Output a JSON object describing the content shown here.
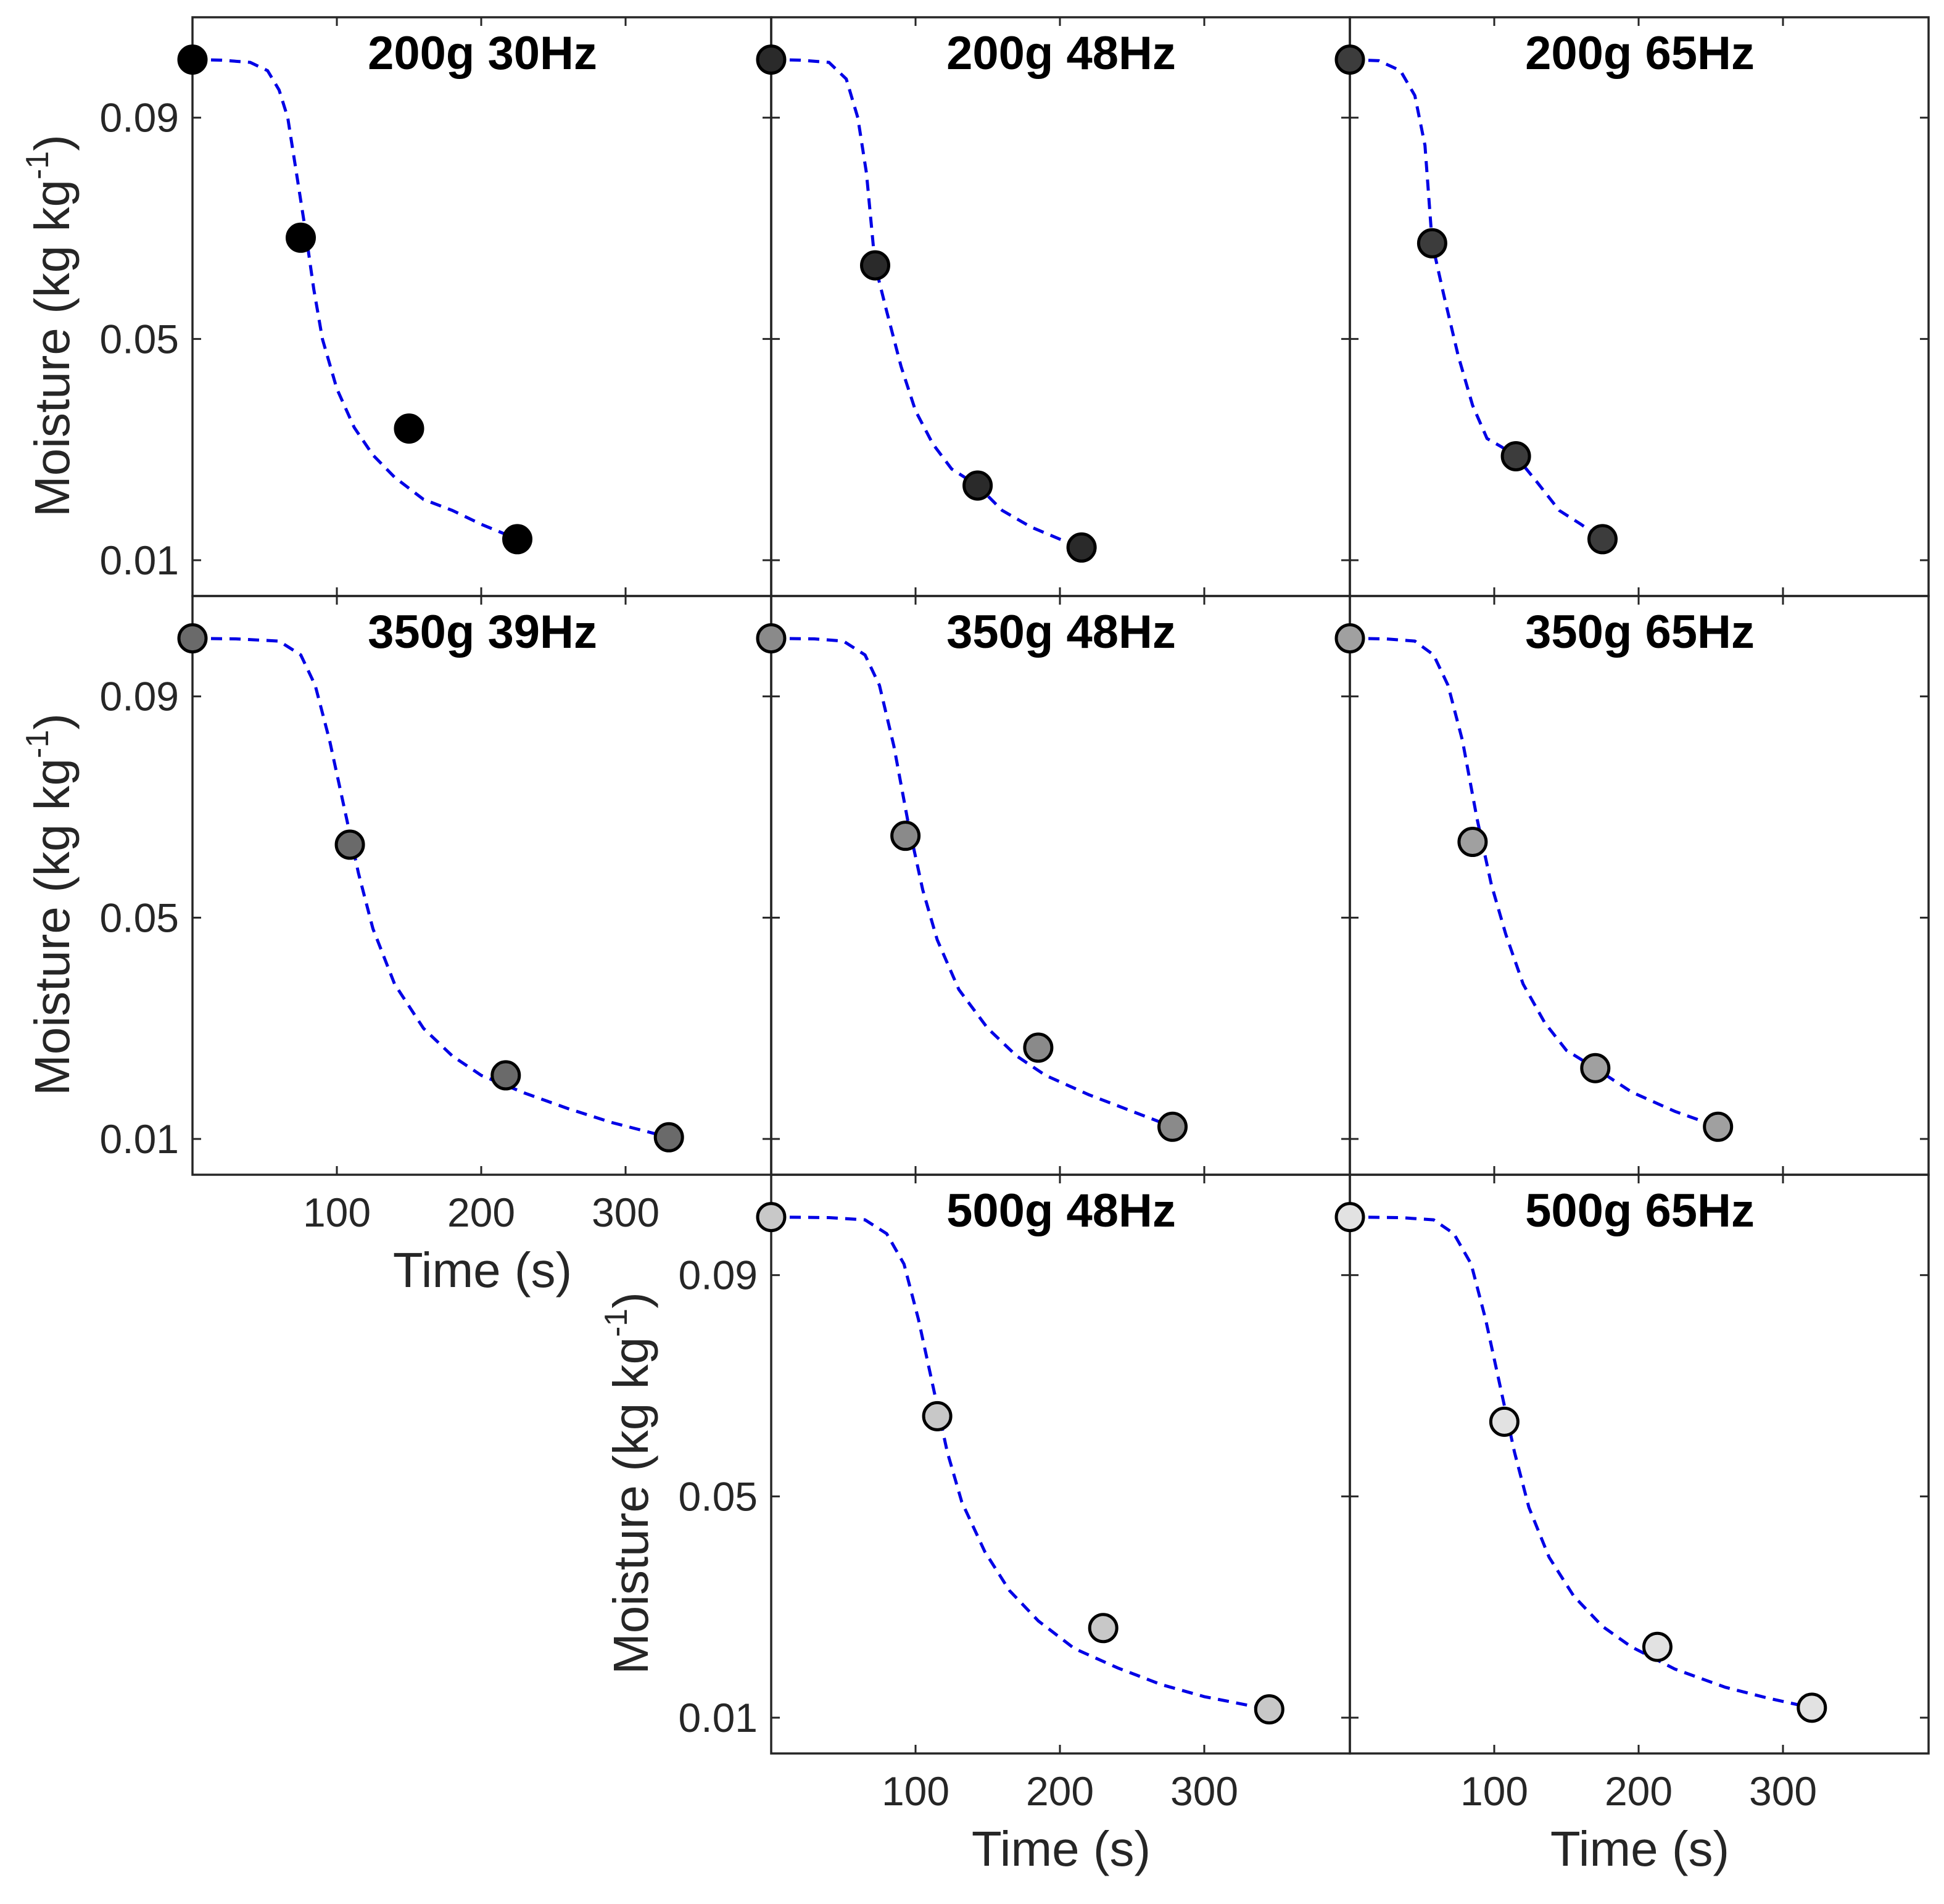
{
  "chart_data": {
    "type": "scatter",
    "layout": "3x3 grid of small multiples, shared axes, bottom-left cell empty",
    "grid": false,
    "xlim": [
      0,
      400
    ],
    "ylim": [
      0,
      0.11
    ],
    "xticks": [
      100,
      200,
      300
    ],
    "yticks": [
      0.01,
      0.05,
      0.09
    ],
    "xlabel": "Time (s)",
    "ylabel": {
      "base": "Moisture (kg kg",
      "sup": "-1",
      "close": ")"
    },
    "fit_line_style": {
      "color": "#0000e6",
      "dash": "dashed",
      "shape": "sigmoidal drying curve"
    },
    "panels": [
      {
        "title": "200g 30Hz",
        "row": 0,
        "col": 0,
        "marker_fill": "#000000",
        "show_ylabel": true,
        "show_xlabel": false,
        "points": [
          [
            0,
            0.1005
          ],
          [
            75,
            0.0683
          ],
          [
            150,
            0.0338
          ],
          [
            225,
            0.0138
          ]
        ],
        "fit": [
          [
            0,
            0.1005
          ],
          [
            20,
            0.1004
          ],
          [
            40,
            0.1
          ],
          [
            52,
            0.0985
          ],
          [
            60,
            0.095
          ],
          [
            66,
            0.09
          ],
          [
            72,
            0.08
          ],
          [
            78,
            0.07
          ],
          [
            84,
            0.059
          ],
          [
            90,
            0.05
          ],
          [
            100,
            0.041
          ],
          [
            112,
            0.034
          ],
          [
            125,
            0.029
          ],
          [
            140,
            0.025
          ],
          [
            160,
            0.021
          ],
          [
            180,
            0.019
          ],
          [
            200,
            0.0165
          ],
          [
            225,
            0.0138
          ]
        ]
      },
      {
        "title": "200g 48Hz",
        "row": 0,
        "col": 1,
        "marker_fill": "#2a2a2a",
        "show_ylabel": false,
        "show_xlabel": false,
        "points": [
          [
            0,
            0.1005
          ],
          [
            72,
            0.0633
          ],
          [
            143,
            0.0235
          ],
          [
            215,
            0.0123
          ]
        ],
        "fit": [
          [
            0,
            0.1005
          ],
          [
            20,
            0.1004
          ],
          [
            40,
            0.1
          ],
          [
            52,
            0.097
          ],
          [
            60,
            0.09
          ],
          [
            66,
            0.08
          ],
          [
            72,
            0.0633
          ],
          [
            80,
            0.055
          ],
          [
            90,
            0.045
          ],
          [
            100,
            0.037
          ],
          [
            112,
            0.031
          ],
          [
            125,
            0.0265
          ],
          [
            143,
            0.0235
          ],
          [
            160,
            0.019
          ],
          [
            180,
            0.016
          ],
          [
            200,
            0.0138
          ],
          [
            215,
            0.0123
          ]
        ]
      },
      {
        "title": "200g 65Hz",
        "row": 0,
        "col": 2,
        "marker_fill": "#3c3c3c",
        "show_ylabel": false,
        "show_xlabel": false,
        "points": [
          [
            0,
            0.1005
          ],
          [
            57,
            0.0673
          ],
          [
            115,
            0.0288
          ],
          [
            175,
            0.0138
          ]
        ],
        "fit": [
          [
            0,
            0.1005
          ],
          [
            20,
            0.1003
          ],
          [
            35,
            0.0985
          ],
          [
            45,
            0.094
          ],
          [
            52,
            0.085
          ],
          [
            57,
            0.0673
          ],
          [
            65,
            0.058
          ],
          [
            75,
            0.047
          ],
          [
            85,
            0.038
          ],
          [
            95,
            0.032
          ],
          [
            105,
            0.0305
          ],
          [
            115,
            0.0288
          ],
          [
            130,
            0.024
          ],
          [
            145,
            0.019
          ],
          [
            160,
            0.0165
          ],
          [
            175,
            0.0138
          ]
        ]
      },
      {
        "title": "350g 39Hz",
        "row": 1,
        "col": 0,
        "marker_fill": "#6a6a6a",
        "show_ylabel": true,
        "show_xlabel": true,
        "points": [
          [
            0,
            0.1005
          ],
          [
            109,
            0.0632
          ],
          [
            217,
            0.0215
          ],
          [
            330,
            0.0103
          ]
        ],
        "fit": [
          [
            0,
            0.1005
          ],
          [
            30,
            0.1004
          ],
          [
            60,
            0.1
          ],
          [
            75,
            0.0975
          ],
          [
            85,
            0.092
          ],
          [
            95,
            0.082
          ],
          [
            105,
            0.07
          ],
          [
            115,
            0.058
          ],
          [
            125,
            0.048
          ],
          [
            140,
            0.038
          ],
          [
            160,
            0.03
          ],
          [
            180,
            0.025
          ],
          [
            200,
            0.0215
          ],
          [
            230,
            0.0183
          ],
          [
            260,
            0.0155
          ],
          [
            290,
            0.013
          ],
          [
            330,
            0.0103
          ]
        ]
      },
      {
        "title": "350g 48Hz",
        "row": 1,
        "col": 1,
        "marker_fill": "#8a8a8a",
        "show_ylabel": false,
        "show_xlabel": false,
        "points": [
          [
            0,
            0.1005
          ],
          [
            93,
            0.0648
          ],
          [
            185,
            0.0265
          ],
          [
            278,
            0.0122
          ]
        ],
        "fit": [
          [
            0,
            0.1005
          ],
          [
            30,
            0.1004
          ],
          [
            50,
            0.1
          ],
          [
            65,
            0.0975
          ],
          [
            75,
            0.092
          ],
          [
            85,
            0.081
          ],
          [
            95,
            0.067
          ],
          [
            105,
            0.055
          ],
          [
            115,
            0.046
          ],
          [
            130,
            0.037
          ],
          [
            150,
            0.03
          ],
          [
            170,
            0.025
          ],
          [
            190,
            0.0215
          ],
          [
            220,
            0.018
          ],
          [
            250,
            0.015
          ],
          [
            278,
            0.0122
          ]
        ]
      },
      {
        "title": "350g 65Hz",
        "row": 1,
        "col": 2,
        "marker_fill": "#a0a0a0",
        "show_ylabel": false,
        "show_xlabel": false,
        "points": [
          [
            0,
            0.1005
          ],
          [
            85,
            0.0637
          ],
          [
            170,
            0.0228
          ],
          [
            255,
            0.0122
          ]
        ],
        "fit": [
          [
            0,
            0.1005
          ],
          [
            25,
            0.1004
          ],
          [
            45,
            0.1
          ],
          [
            58,
            0.0975
          ],
          [
            68,
            0.092
          ],
          [
            78,
            0.082
          ],
          [
            88,
            0.068
          ],
          [
            98,
            0.056
          ],
          [
            108,
            0.047
          ],
          [
            120,
            0.038
          ],
          [
            135,
            0.031
          ],
          [
            150,
            0.026
          ],
          [
            170,
            0.0228
          ],
          [
            195,
            0.0185
          ],
          [
            225,
            0.015
          ],
          [
            255,
            0.0122
          ]
        ]
      },
      {
        "title": "500g 48Hz",
        "row": 2,
        "col": 1,
        "marker_fill": "#c8c8c8",
        "show_ylabel": true,
        "show_xlabel": true,
        "points": [
          [
            0,
            0.1005
          ],
          [
            115,
            0.0645
          ],
          [
            230,
            0.0262
          ],
          [
            345,
            0.0115
          ]
        ],
        "fit": [
          [
            0,
            0.1005
          ],
          [
            40,
            0.1004
          ],
          [
            65,
            0.1
          ],
          [
            80,
            0.0975
          ],
          [
            92,
            0.092
          ],
          [
            102,
            0.082
          ],
          [
            112,
            0.07
          ],
          [
            122,
            0.058
          ],
          [
            132,
            0.049
          ],
          [
            148,
            0.04
          ],
          [
            165,
            0.033
          ],
          [
            185,
            0.0275
          ],
          [
            210,
            0.0225
          ],
          [
            240,
            0.019
          ],
          [
            270,
            0.016
          ],
          [
            300,
            0.0138
          ],
          [
            345,
            0.0115
          ]
        ]
      },
      {
        "title": "500g 65Hz",
        "row": 2,
        "col": 2,
        "marker_fill": "#e2e2e2",
        "show_ylabel": false,
        "show_xlabel": true,
        "points": [
          [
            0,
            0.1005
          ],
          [
            107,
            0.0635
          ],
          [
            213,
            0.0228
          ],
          [
            320,
            0.0118
          ]
        ],
        "fit": [
          [
            0,
            0.1005
          ],
          [
            35,
            0.1004
          ],
          [
            58,
            0.1
          ],
          [
            72,
            0.0975
          ],
          [
            84,
            0.092
          ],
          [
            94,
            0.082
          ],
          [
            104,
            0.07
          ],
          [
            114,
            0.058
          ],
          [
            124,
            0.048
          ],
          [
            138,
            0.039
          ],
          [
            155,
            0.032
          ],
          [
            175,
            0.0265
          ],
          [
            195,
            0.0228
          ],
          [
            225,
            0.0188
          ],
          [
            260,
            0.0155
          ],
          [
            290,
            0.0135
          ],
          [
            320,
            0.0118
          ]
        ]
      }
    ]
  }
}
